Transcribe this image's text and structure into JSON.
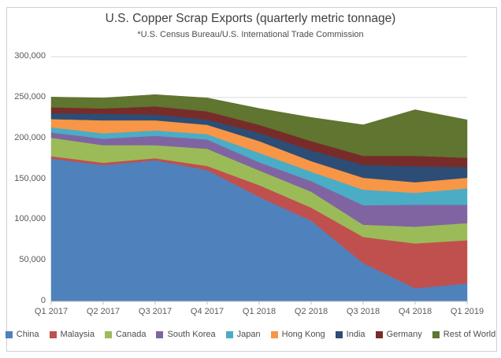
{
  "title": "U.S. Copper Scrap Exports (quarterly metric tonnage)",
  "subtitle": "*U.S. Census Bureau/U.S. International Trade Commission",
  "chart_data": {
    "type": "area",
    "stacked": true,
    "title": "U.S. Copper Scrap Exports (quarterly metric tonnage)",
    "subtitle": "*U.S. Census Bureau/U.S. International Trade Commission",
    "xlabel": "",
    "ylabel": "",
    "grid": true,
    "legend_position": "bottom",
    "ylim": [
      0,
      300000
    ],
    "ytick_step": 50000,
    "ytick_labels": [
      "0",
      "50,000",
      "100,000",
      "150,000",
      "200,000",
      "250,000",
      "300,000"
    ],
    "categories": [
      "Q1 2017",
      "Q2 2017",
      "Q3 2017",
      "Q4 2017",
      "Q1 2018",
      "Q2 2018",
      "Q3 2018",
      "Q4 2018",
      "Q1 2019"
    ],
    "series": [
      {
        "name": "China",
        "color": "#4F81BD",
        "values": [
          175000,
          167000,
          173000,
          161000,
          128000,
          99000,
          47000,
          16000,
          22000
        ]
      },
      {
        "name": "Malaysia",
        "color": "#C0504D",
        "values": [
          3000,
          3000,
          2500,
          5000,
          14500,
          16000,
          32000,
          55000,
          53000
        ]
      },
      {
        "name": "Canada",
        "color": "#9BBB59",
        "values": [
          22500,
          21500,
          16000,
          21000,
          18000,
          19500,
          15000,
          20500,
          21000
        ]
      },
      {
        "name": "South Korea",
        "color": "#8064A2",
        "values": [
          6500,
          8000,
          11500,
          11500,
          10000,
          13000,
          24000,
          27000,
          22500
        ]
      },
      {
        "name": "Japan",
        "color": "#4BACC6",
        "values": [
          6500,
          6500,
          6500,
          6500,
          11500,
          11500,
          19000,
          14500,
          20000
        ]
      },
      {
        "name": "Hong Kong",
        "color": "#F79646",
        "values": [
          10000,
          16000,
          12500,
          11500,
          14500,
          13000,
          14500,
          13000,
          13000
        ]
      },
      {
        "name": "India",
        "color": "#2C4D75",
        "values": [
          7000,
          8000,
          7000,
          6500,
          10000,
          13000,
          16000,
          19500,
          13000
        ]
      },
      {
        "name": "Germany",
        "color": "#772C2A",
        "values": [
          7500,
          6500,
          10000,
          10000,
          10000,
          11500,
          11000,
          13000,
          11500
        ]
      },
      {
        "name": "Rest of World",
        "color": "#5F7530",
        "values": [
          12500,
          13000,
          14500,
          16500,
          20000,
          29000,
          38000,
          56500,
          46500
        ]
      }
    ],
    "gridline_color": "#d9d9d9",
    "axis_color": "#bfbfbf"
  }
}
